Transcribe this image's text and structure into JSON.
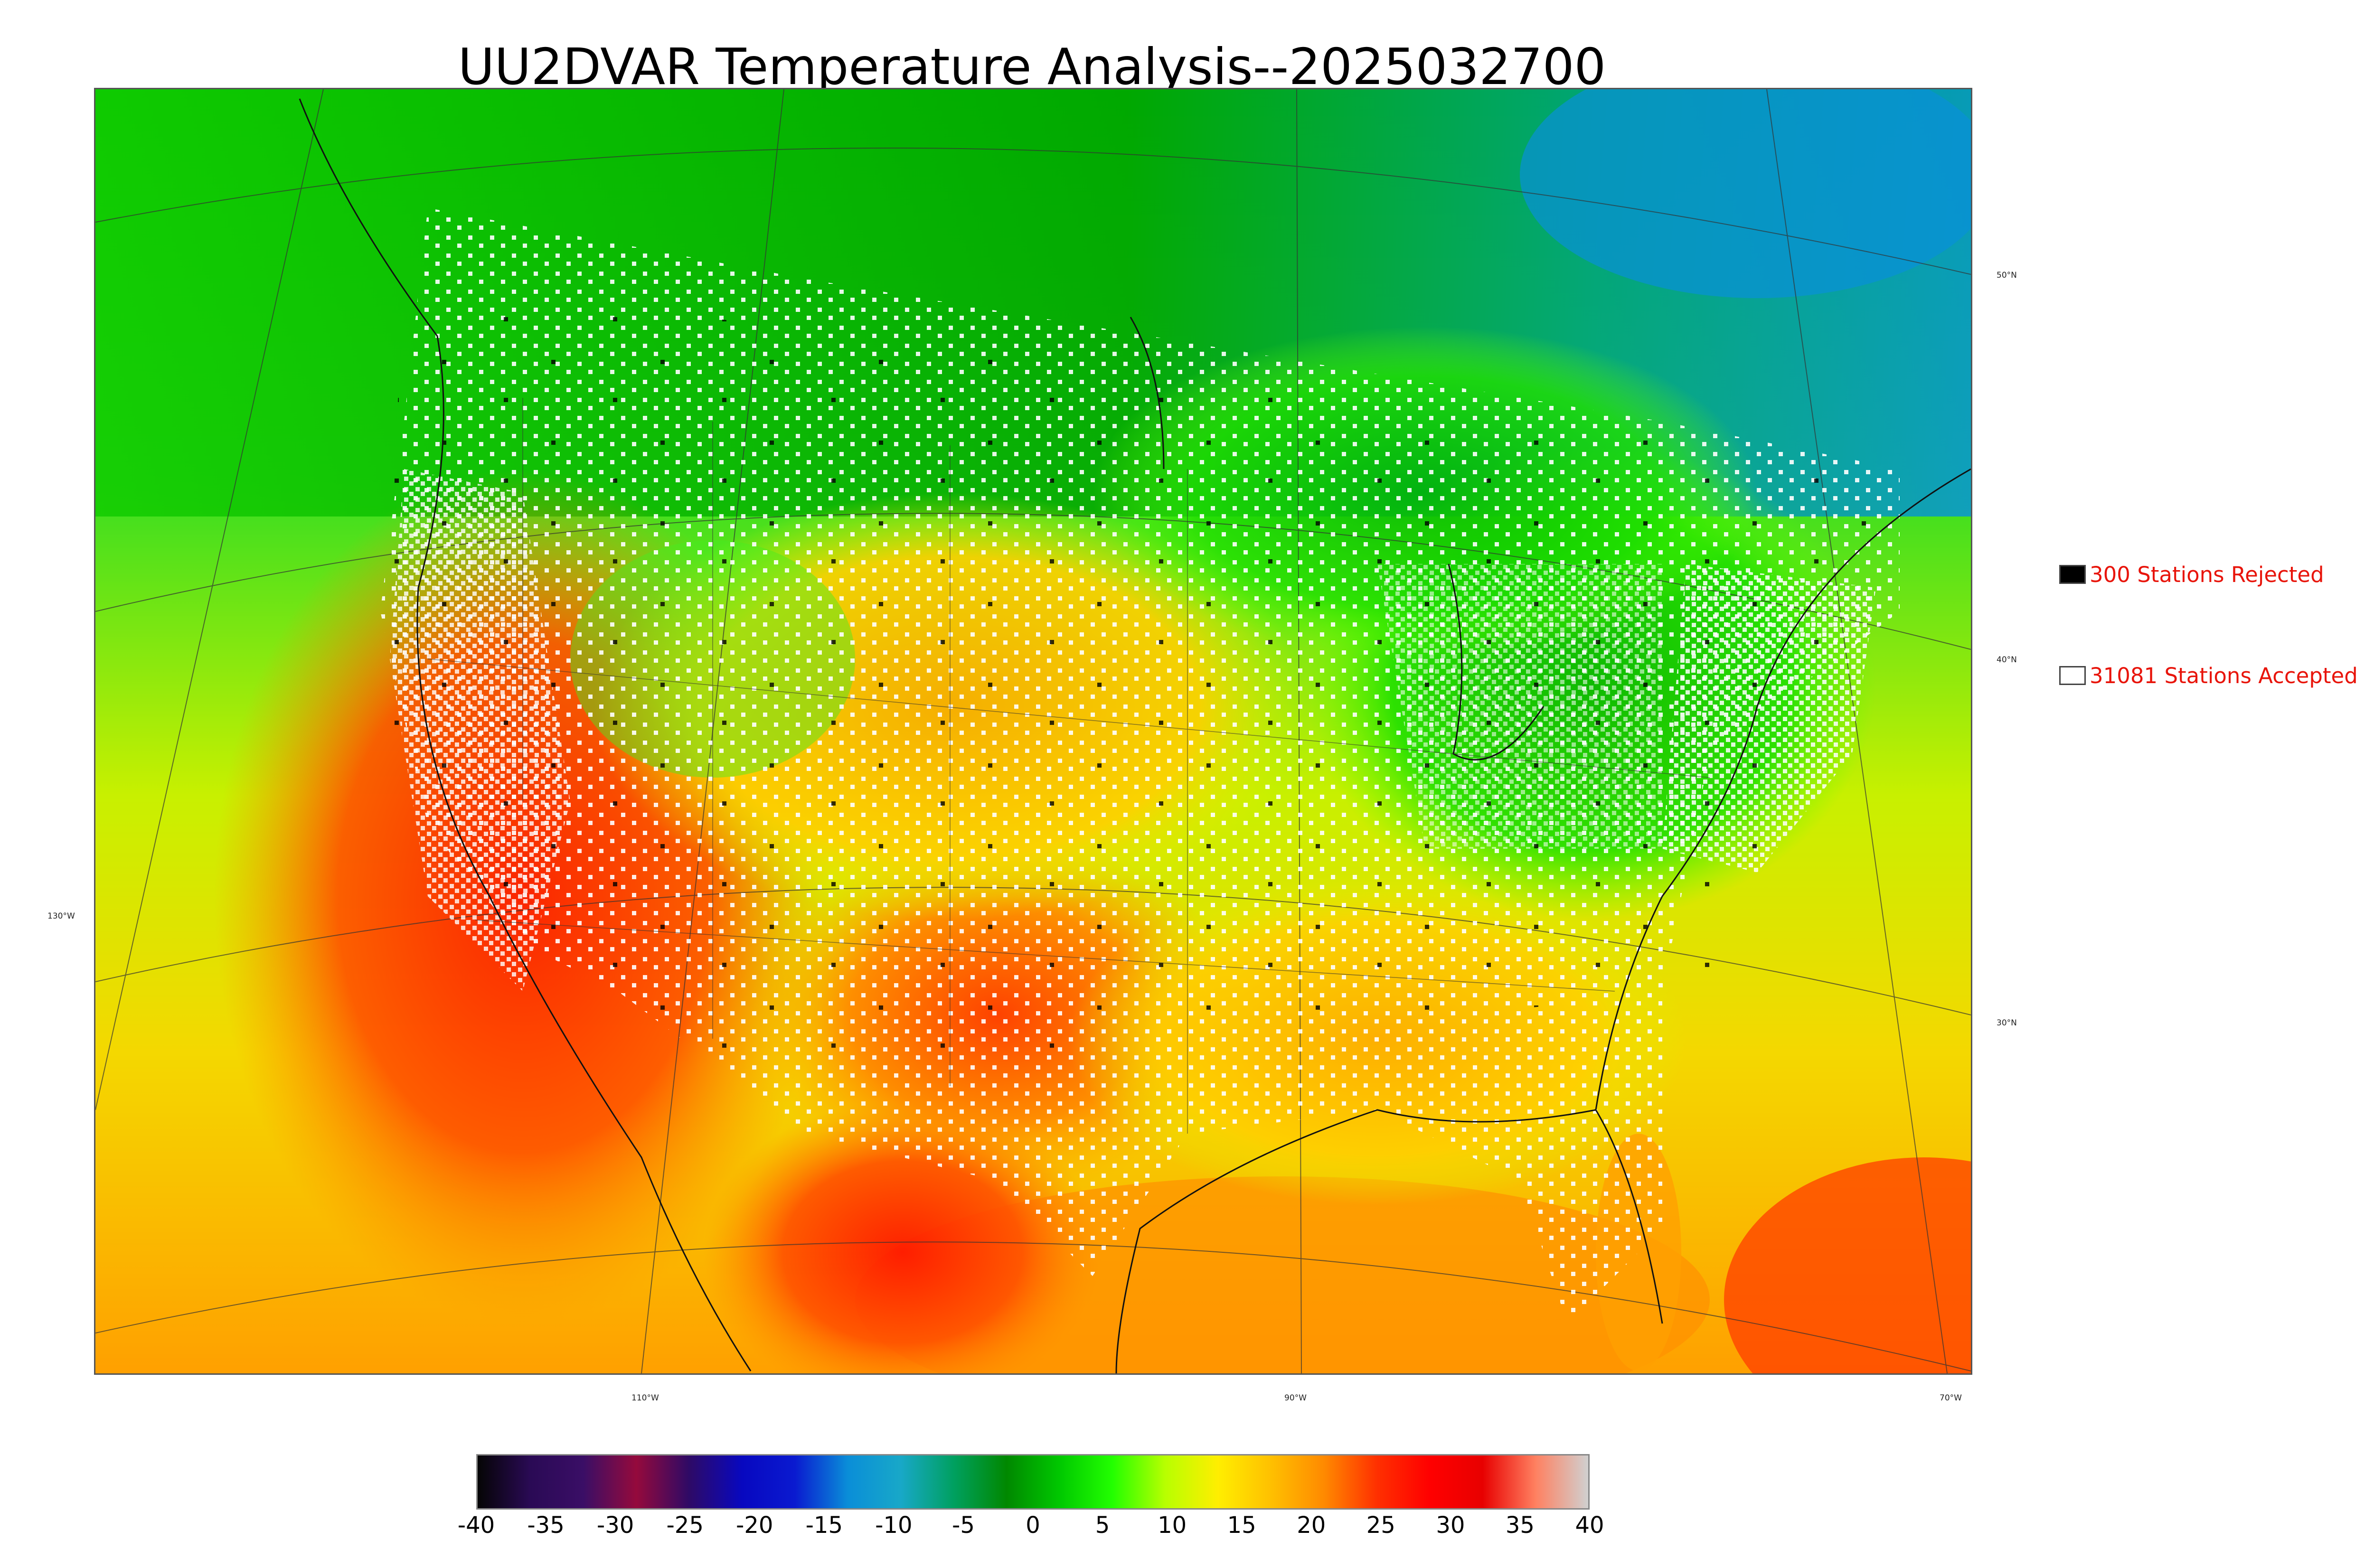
{
  "title": "UU2DVAR Temperature Analysis--2025032700",
  "map": {
    "lat_labels": [
      "50°N",
      "40°N",
      "30°N"
    ],
    "lon_labels": [
      "130°W",
      "110°W",
      "90°W",
      "70°W"
    ]
  },
  "legend": {
    "rejected": {
      "label": "300 Stations Rejected",
      "count": 300,
      "color": "#000000"
    },
    "accepted": {
      "label": "31081 Stations Accepted",
      "count": 31081,
      "color": "#ffffff"
    }
  },
  "colorbar": {
    "min": -40,
    "max": 40,
    "ticks": [
      "-40",
      "-35",
      "-30",
      "-25",
      "-20",
      "-15",
      "-10",
      "-5",
      "0",
      "5",
      "10",
      "15",
      "20",
      "25",
      "30",
      "35",
      "40"
    ],
    "colors": [
      "#050505",
      "#2a0a55",
      "#3a0e66",
      "#950a3c",
      "#2e0a66",
      "#0808c0",
      "#0a1ad0",
      "#0a8ed8",
      "#18a8c8",
      "#00a060",
      "#008800",
      "#00c800",
      "#22ff00",
      "#b8ff00",
      "#ffee00",
      "#ffc000",
      "#ff8a00",
      "#ff3000",
      "#ff0000",
      "#e80000",
      "#ff8060",
      "#d0d0d0"
    ]
  }
}
